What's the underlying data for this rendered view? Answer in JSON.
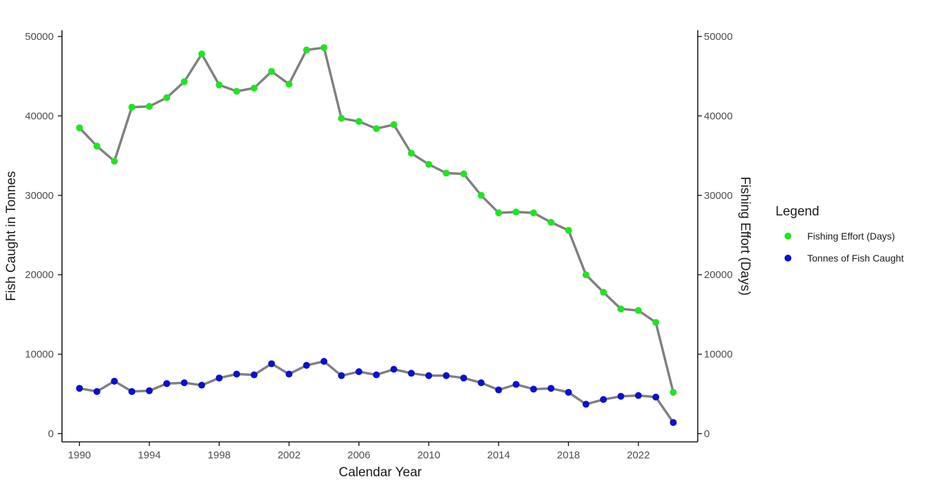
{
  "chart_data": {
    "type": "line",
    "xlabel": "Calendar Year",
    "ylabel": "Fish Caught in Tonnes",
    "y2label": "Fishing Effort (Days)",
    "x": [
      1990,
      1991,
      1992,
      1993,
      1994,
      1995,
      1996,
      1997,
      1998,
      1999,
      2000,
      2001,
      2002,
      2003,
      2004,
      2005,
      2006,
      2007,
      2008,
      2009,
      2010,
      2011,
      2012,
      2013,
      2014,
      2015,
      2016,
      2017,
      2018,
      2019,
      2020,
      2021,
      2022,
      2023,
      2024
    ],
    "xticks": [
      "1990",
      "1994",
      "1998",
      "2002",
      "2006",
      "2010",
      "2014",
      "2018",
      "2022"
    ],
    "yticks": [
      "0",
      "10000",
      "20000",
      "30000",
      "40000",
      "50000"
    ],
    "y2ticks": [
      "0",
      "10000",
      "20000",
      "30000",
      "40000",
      "50000"
    ],
    "xlim": [
      1989,
      2025.4
    ],
    "ylim": [
      0,
      51000
    ],
    "grid": false,
    "line_color": "#808080",
    "legend": {
      "title": "Legend",
      "placement": "right"
    },
    "series": [
      {
        "name": "Fishing Effort (Days)",
        "color": "#1ee61e",
        "values": [
          38500,
          36200,
          34300,
          41100,
          41200,
          42300,
          44300,
          47800,
          43900,
          43100,
          43500,
          45600,
          44000,
          48300,
          48600,
          39700,
          39300,
          38400,
          38900,
          35300,
          33900,
          32800,
          32700,
          30000,
          27800,
          27900,
          27800,
          26600,
          25600,
          20000,
          17800,
          15700,
          15500,
          14000,
          5200
        ]
      },
      {
        "name": "Tonnes of Fish Caught",
        "color": "#0a10d2",
        "values": [
          5700,
          5300,
          6600,
          5300,
          5400,
          6300,
          6400,
          6100,
          7000,
          7500,
          7400,
          8800,
          7500,
          8600,
          9100,
          7300,
          7800,
          7400,
          8100,
          7600,
          7300,
          7300,
          7000,
          6400,
          5500,
          6200,
          5600,
          5700,
          5200,
          3700,
          4300,
          4700,
          4800,
          4600,
          1400
        ]
      }
    ]
  }
}
